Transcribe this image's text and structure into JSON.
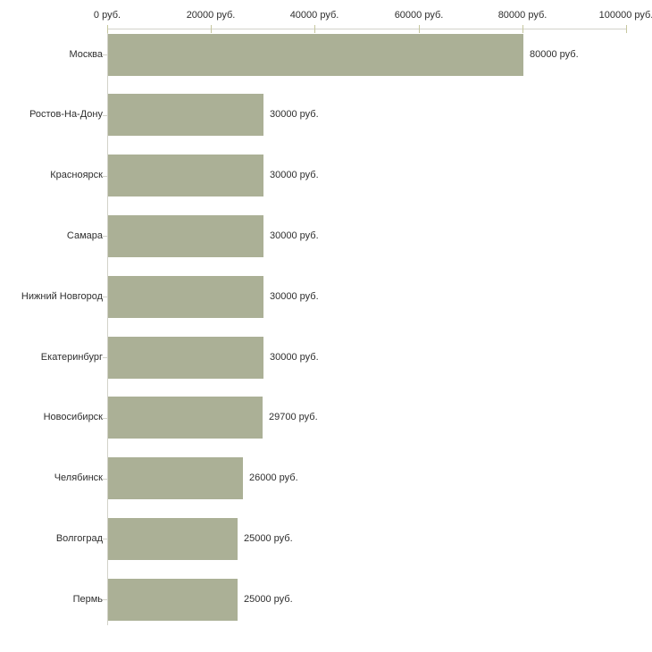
{
  "chart_data": {
    "type": "bar",
    "orientation": "horizontal",
    "title": "",
    "xlabel": "",
    "ylabel": "",
    "unit": "руб.",
    "grid": false,
    "legend": "none",
    "categories": [
      "Москва",
      "Ростов-На-Дону",
      "Красноярск",
      "Самара",
      "Нижний Новгород",
      "Екатеринбург",
      "Новосибирск",
      "Челябинск",
      "Волгоград",
      "Пермь"
    ],
    "values": [
      80000,
      30000,
      30000,
      30000,
      30000,
      30000,
      29700,
      26000,
      25000,
      25000
    ],
    "value_labels": [
      "80000 руб.",
      "30000 руб.",
      "30000 руб.",
      "30000 руб.",
      "30000 руб.",
      "30000 руб.",
      "29700 руб.",
      "26000 руб.",
      "25000 руб.",
      "25000 руб."
    ],
    "x_axis": {
      "position": "top",
      "range": [
        0,
        100000
      ],
      "ticks": [
        0,
        20000,
        40000,
        60000,
        80000,
        100000
      ],
      "tick_labels": [
        "0 руб.",
        "20000 руб.",
        "40000 руб.",
        "60000 руб.",
        "80000 руб.",
        "100000 руб."
      ]
    },
    "colors": {
      "bar": "#abb096",
      "axis_line": "#d3d3ca",
      "tick_mark": "#c6c79e",
      "text": "#2e2e2e",
      "background": "#ffffff"
    }
  }
}
